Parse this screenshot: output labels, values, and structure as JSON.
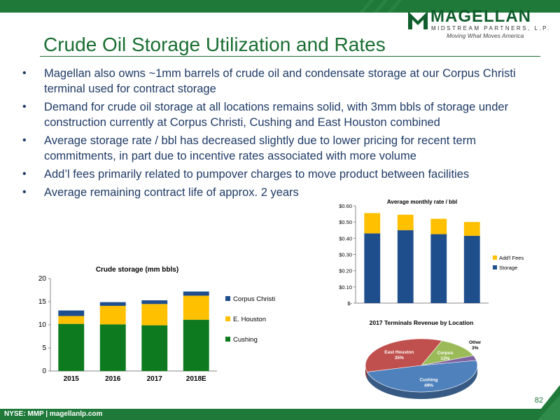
{
  "header": {
    "title": "Crude Oil Storage Utilization and Rates",
    "logo_name": "MAGELLAN",
    "logo_sub": "MIDSTREAM PARTNERS, L.P.",
    "logo_tagline": "Moving What Moves America"
  },
  "bullets": [
    "Magellan also owns ~1mm barrels of crude oil and condensate storage at our Corpus Christi terminal used for contract storage",
    "Demand for crude oil storage at all locations remains solid, with 3mm bbls of storage under construction currently at Corpus Christi, Cushing and East Houston combined",
    "Average storage rate / bbl has decreased slightly due to lower pricing for recent term commitments, in part due to incentive rates associated with more volume",
    "Add’l fees primarily related to pumpover charges to move product between facilities",
    "Average remaining contract life of approx. 2 years"
  ],
  "footer": {
    "left": "NYSE: MMP  |  magellanlp.com",
    "page": "82"
  },
  "colors": {
    "green": "#1f7a3a",
    "navy": "#1f4e8c",
    "gold": "#ffc000",
    "cushing": "#0d7a1f"
  },
  "chart_data": [
    {
      "type": "bar",
      "stacked": true,
      "title": "Crude storage (mm bbls)",
      "categories": [
        "2015",
        "2016",
        "2017",
        "2018E"
      ],
      "series": [
        {
          "name": "Cushing",
          "values": [
            10.2,
            10.1,
            9.9,
            11.1
          ],
          "color": "#0d7a1f"
        },
        {
          "name": "E. Houston",
          "values": [
            1.7,
            4.0,
            4.6,
            5.2
          ],
          "color": "#ffc000"
        },
        {
          "name": "Corpus Christi",
          "values": [
            1.2,
            0.8,
            0.8,
            0.9
          ],
          "color": "#1f4e8c"
        }
      ],
      "ylim": [
        0,
        20
      ],
      "yticks": [
        0,
        5,
        10,
        15,
        20
      ],
      "legend": [
        "Corpus Christi",
        "E. Houston",
        "Cushing"
      ],
      "legend_position": "right",
      "grid": false
    },
    {
      "type": "bar",
      "stacked": true,
      "title": "Average monthly rate / bbl",
      "categories": [
        "",
        "",
        "",
        ""
      ],
      "series": [
        {
          "name": "Storage",
          "values": [
            0.43,
            0.45,
            0.425,
            0.415
          ],
          "color": "#1f4e8c"
        },
        {
          "name": "Add'l Fees",
          "values": [
            0.125,
            0.095,
            0.095,
            0.085
          ],
          "color": "#ffc000"
        }
      ],
      "ylim": [
        0,
        0.6
      ],
      "ytick_labels": [
        "$-",
        "$0.10",
        "$0.20",
        "$0.30",
        "$0.40",
        "$0.50",
        "$0.60"
      ],
      "legend": [
        "Add'l Fees",
        "Storage"
      ],
      "legend_position": "right",
      "grid": false
    },
    {
      "type": "pie",
      "title": "2017 Terminals Revenue by Location",
      "slices": [
        {
          "label": "Cushing",
          "value": 49,
          "text": "49%",
          "color": "#4f81bd"
        },
        {
          "label": "East Houston",
          "value": 35,
          "text": "35%",
          "color": "#c0504d"
        },
        {
          "label": "Corpus",
          "value": 13,
          "text": "13%",
          "color": "#9bbb59"
        },
        {
          "label": "Other",
          "value": 3,
          "text": "3%",
          "color": "#8064a2"
        }
      ]
    }
  ]
}
